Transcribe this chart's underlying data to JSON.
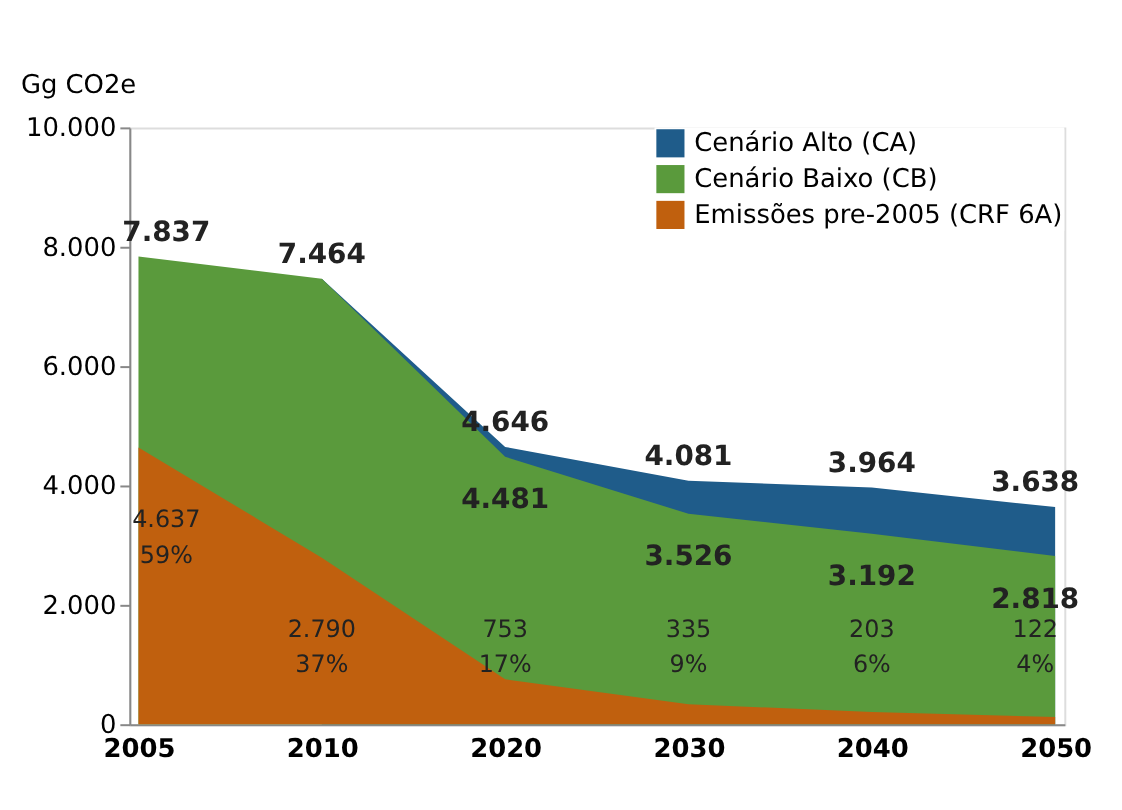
{
  "chart_data": {
    "type": "area",
    "ylabel": "Gg CO2e",
    "categories": [
      "2005",
      "2010",
      "2020",
      "2030",
      "2040",
      "2050"
    ],
    "ylim": [
      0,
      10000
    ],
    "yticks": [
      {
        "value": 0,
        "label": "0"
      },
      {
        "value": 2000,
        "label": "2.000"
      },
      {
        "value": 4000,
        "label": "4.000"
      },
      {
        "value": 6000,
        "label": "6.000"
      },
      {
        "value": 8000,
        "label": "8.000"
      },
      {
        "value": 10000,
        "label": "10.000"
      }
    ],
    "series": [
      {
        "name": "Emissões pre-2005 (CRF 6A)",
        "color": "#c0600e",
        "values": [
          4637,
          2790,
          753,
          335,
          203,
          122
        ],
        "value_labels": [
          "4.637\n59%",
          "2.790\n37%",
          "753\n17%",
          "335\n9%",
          "203\n6%",
          "122\n4%"
        ]
      },
      {
        "name": "Cenário Baixo (CB)",
        "color": "#5a9a3c",
        "values": [
          7837,
          7464,
          4481,
          3526,
          3192,
          2818
        ],
        "value_labels": [
          "7.837",
          "7.464",
          "4.481",
          "3.526",
          "3.192",
          "2.818"
        ]
      },
      {
        "name": "Cenário Alto (CA)",
        "color": "#1f5c8a",
        "values": [
          null,
          7464,
          4646,
          4081,
          3964,
          3638
        ],
        "value_labels": [
          null,
          null,
          "4.646",
          "4.081",
          "3.964",
          "3.638"
        ]
      }
    ],
    "grid": false,
    "legend": "top right"
  }
}
